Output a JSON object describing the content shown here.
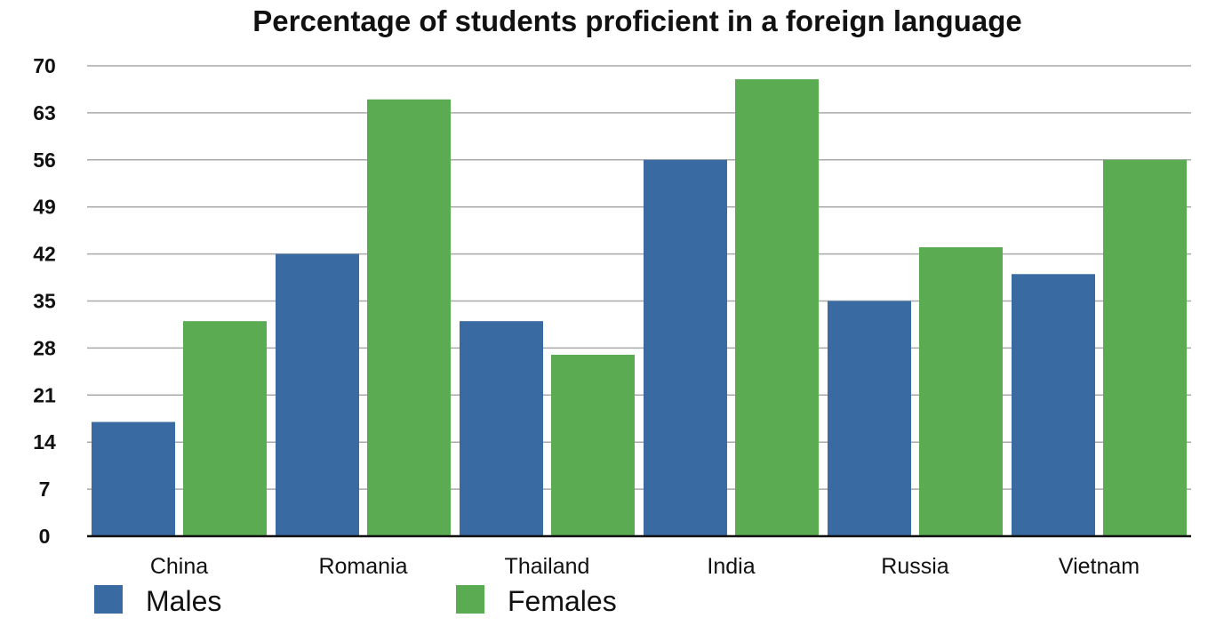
{
  "chart_data": {
    "type": "bar",
    "title": "Percentage of students proficient in a foreign language",
    "xlabel": "",
    "ylabel": "",
    "categories": [
      "China",
      "Romania",
      "Thailand",
      "India",
      "Russia",
      "Vietnam"
    ],
    "series": [
      {
        "name": "Males",
        "color": "#3a6aa2",
        "values": [
          17,
          42,
          32,
          56,
          35,
          39
        ]
      },
      {
        "name": "Females",
        "color": "#5bab53",
        "values": [
          32,
          65,
          27,
          68,
          43,
          56
        ]
      }
    ],
    "ylim": [
      0,
      70
    ],
    "yticks": [
      0,
      7,
      14,
      21,
      28,
      35,
      42,
      49,
      56,
      63,
      70
    ],
    "grid": true,
    "legend": "bottom-left"
  }
}
